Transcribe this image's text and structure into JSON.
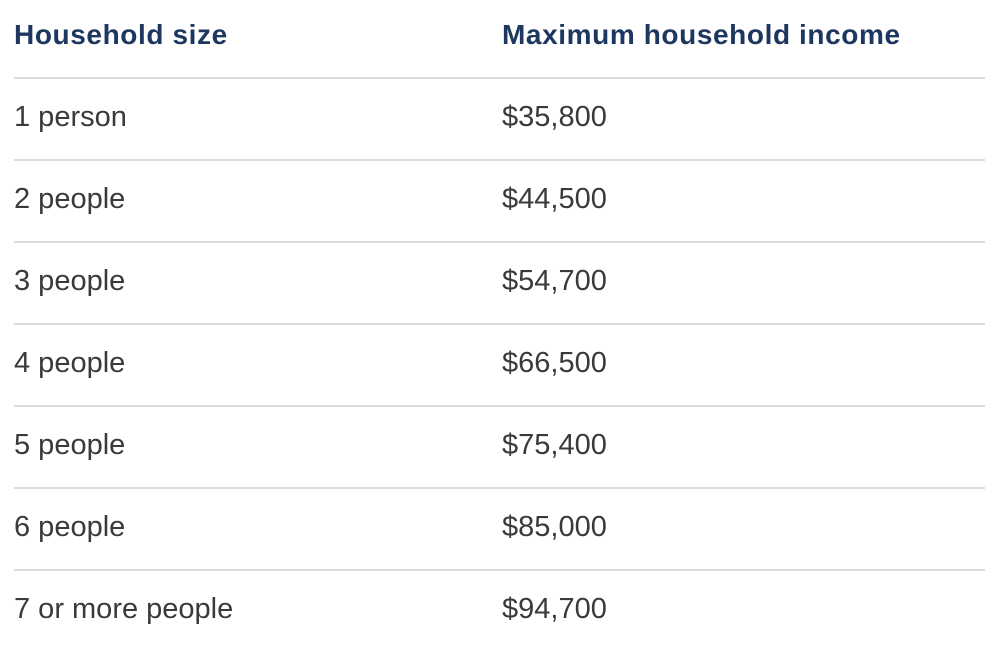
{
  "colors": {
    "header_text": "#1e3760",
    "body_text": "#3a3a3a",
    "row_divider": "#dcdcdc",
    "background": "#ffffff"
  },
  "table": {
    "headers": [
      "Household size",
      "Maximum household income"
    ],
    "rows": [
      [
        "1 person",
        "$35,800"
      ],
      [
        "2 people",
        "$44,500"
      ],
      [
        "3 people",
        "$54,700"
      ],
      [
        "4 people",
        "$66,500"
      ],
      [
        "5 people",
        "$75,400"
      ],
      [
        "6 people",
        "$85,000"
      ],
      [
        "7 or more people",
        "$94,700"
      ]
    ]
  }
}
